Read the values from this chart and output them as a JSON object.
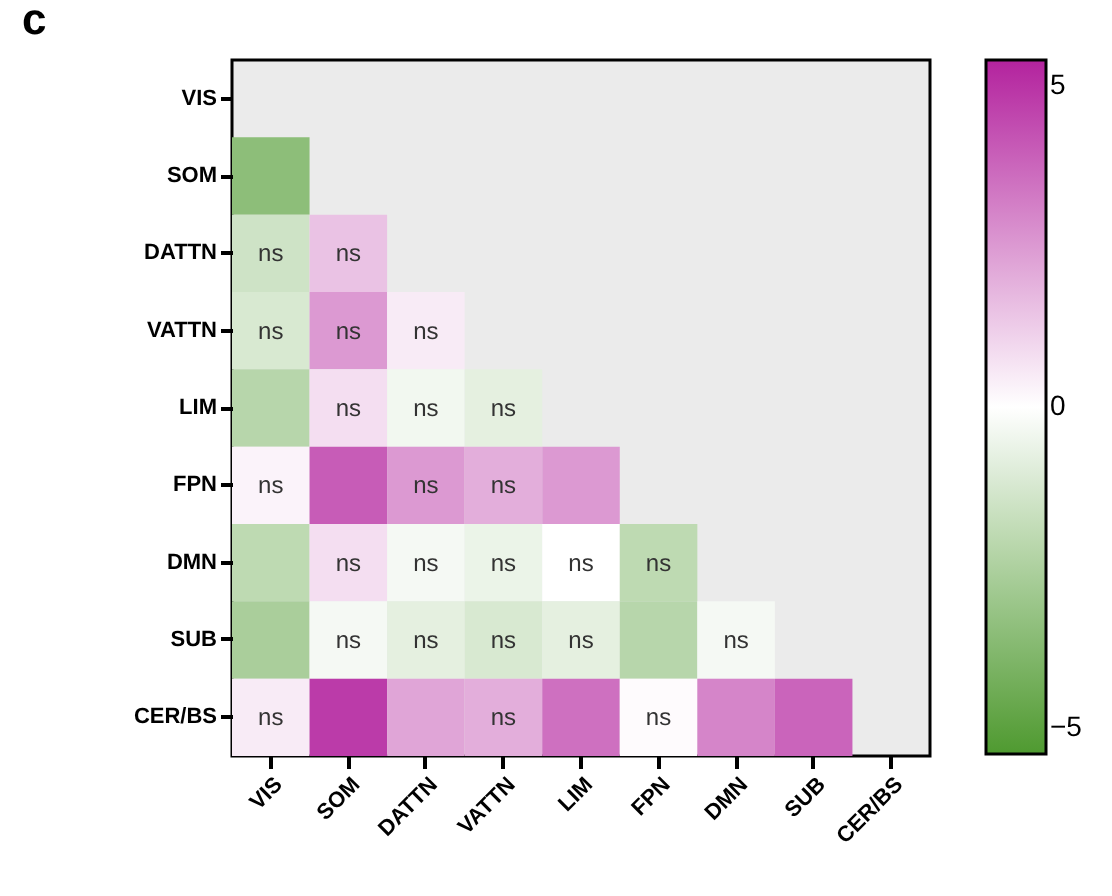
{
  "chart_data": {
    "type": "heatmap",
    "title": "c",
    "categories": [
      "VIS",
      "SOM",
      "DATTN",
      "VATTN",
      "LIM",
      "FPN",
      "DMN",
      "SUB",
      "CER/BS"
    ],
    "y_categories": [
      "VIS",
      "SOM",
      "DATTN",
      "VATTN",
      "LIM",
      "FPN",
      "DMN",
      "SUB",
      "CER/BS"
    ],
    "cells": [
      [
        null,
        null,
        null,
        null,
        null,
        null,
        null,
        null,
        null
      ],
      [
        -3.5,
        null,
        null,
        null,
        null,
        null,
        null,
        null,
        null
      ],
      [
        -1.5,
        1.5,
        null,
        null,
        null,
        null,
        null,
        null,
        null
      ],
      [
        -1.2,
        2.5,
        0.5,
        null,
        null,
        null,
        null,
        null,
        null
      ],
      [
        -2.2,
        0.8,
        -0.4,
        -0.8,
        null,
        null,
        null,
        null,
        null
      ],
      [
        0.3,
        4.0,
        2.5,
        2.0,
        2.5,
        null,
        null,
        null,
        null
      ],
      [
        -2.0,
        0.8,
        -0.3,
        -0.6,
        0.0,
        -2.0,
        null,
        null,
        null
      ],
      [
        -2.6,
        -0.3,
        -0.8,
        -1.2,
        -0.8,
        -2.2,
        -0.3,
        null,
        null
      ],
      [
        0.5,
        4.8,
        2.2,
        2.0,
        3.5,
        0.1,
        3.0,
        3.8,
        null
      ]
    ],
    "cell_labels": [
      [
        null,
        null,
        null,
        null,
        null,
        null,
        null,
        null,
        null
      ],
      [
        null,
        null,
        null,
        null,
        null,
        null,
        null,
        null,
        null
      ],
      [
        "ns",
        "ns",
        null,
        null,
        null,
        null,
        null,
        null,
        null
      ],
      [
        "ns",
        "ns",
        "ns",
        null,
        null,
        null,
        null,
        null,
        null
      ],
      [
        null,
        "ns",
        "ns",
        "ns",
        null,
        null,
        null,
        null,
        null
      ],
      [
        "ns",
        null,
        "ns",
        "ns",
        null,
        null,
        null,
        null,
        null
      ],
      [
        null,
        "ns",
        "ns",
        "ns",
        "ns",
        "ns",
        null,
        null,
        null
      ],
      [
        null,
        "ns",
        "ns",
        "ns",
        "ns",
        null,
        "ns",
        null,
        null
      ],
      [
        "ns",
        null,
        null,
        "ns",
        null,
        "ns",
        null,
        null,
        null
      ]
    ],
    "clim": [
      -5.4,
      5.4
    ],
    "cticks": [
      5,
      0,
      -5
    ]
  }
}
